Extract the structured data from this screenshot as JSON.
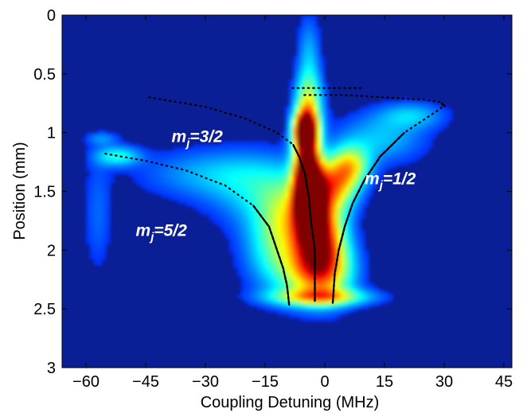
{
  "chart_data": {
    "type": "heatmap",
    "title": "",
    "xlabel": "Coupling Detuning (MHz)",
    "ylabel": "Position (mm)",
    "xlim": [
      -66,
      47
    ],
    "ylim": [
      0,
      3
    ],
    "y_inverted": true,
    "x_ticks": [
      -60,
      -45,
      -30,
      -15,
      0,
      15,
      30,
      45
    ],
    "x_tick_labels": [
      "−60",
      "−45",
      "−30",
      "−15",
      "0",
      "15",
      "30",
      "45"
    ],
    "y_ticks": [
      0,
      0.5,
      1,
      1.5,
      2,
      2.5,
      3
    ],
    "y_tick_labels": [
      "0",
      "0.5",
      "1",
      "1.5",
      "2",
      "2.5",
      "3"
    ],
    "colormap": "jet",
    "colors": {
      "background": "#0a1e96",
      "axis": "#000000",
      "annotation": "#ffffff",
      "curve": "#000000"
    },
    "intensity_blobs": [
      {
        "x": -4.5,
        "y": 1.25,
        "sx": 2.2,
        "sy": 0.28,
        "a": 1.0
      },
      {
        "x": -3.5,
        "y": 1.55,
        "sx": 2.6,
        "sy": 0.18,
        "a": 0.85
      },
      {
        "x": -5.0,
        "y": 0.98,
        "sx": 2.0,
        "sy": 0.1,
        "a": 0.8
      },
      {
        "x": -2.5,
        "y": 1.85,
        "sx": 3.5,
        "sy": 0.2,
        "a": 0.62
      },
      {
        "x": -2.0,
        "y": 2.2,
        "sx": 6.0,
        "sy": 0.18,
        "a": 0.55
      },
      {
        "x": 2.5,
        "y": 1.45,
        "sx": 4.0,
        "sy": 0.15,
        "a": 0.55
      },
      {
        "x": 6.5,
        "y": 1.28,
        "sx": 3.5,
        "sy": 0.12,
        "a": 0.45
      },
      {
        "x": 1.0,
        "y": 1.95,
        "sx": 4.0,
        "sy": 0.25,
        "a": 0.4
      },
      {
        "x": -1.0,
        "y": 2.4,
        "sx": 9.0,
        "sy": 0.05,
        "a": 0.45
      },
      {
        "x": -4.0,
        "y": 0.75,
        "sx": 2.5,
        "sy": 0.18,
        "a": 0.35
      },
      {
        "x": -4.0,
        "y": 0.35,
        "sx": 2.0,
        "sy": 0.25,
        "a": 0.2
      },
      {
        "x": -9.0,
        "y": 1.72,
        "sx": 5.0,
        "sy": 0.22,
        "a": 0.3
      },
      {
        "x": -16.0,
        "y": 1.5,
        "sx": 9.0,
        "sy": 0.22,
        "a": 0.22
      },
      {
        "x": -30.0,
        "y": 1.35,
        "sx": 12.0,
        "sy": 0.15,
        "a": 0.18
      },
      {
        "x": -52.0,
        "y": 1.2,
        "sx": 4.0,
        "sy": 0.06,
        "a": 0.3
      },
      {
        "x": 14.0,
        "y": 1.05,
        "sx": 8.0,
        "sy": 0.15,
        "a": 0.22
      },
      {
        "x": 22.0,
        "y": 0.85,
        "sx": 6.0,
        "sy": 0.08,
        "a": 0.2
      },
      {
        "x": -56.0,
        "y": 1.05,
        "sx": 3.0,
        "sy": 0.04,
        "a": 0.15
      },
      {
        "x": -57.0,
        "y": 1.7,
        "sx": 2.5,
        "sy": 0.35,
        "a": 0.12
      },
      {
        "x": -12.0,
        "y": 2.0,
        "sx": 6.0,
        "sy": 0.25,
        "a": 0.28
      }
    ],
    "curves": [
      {
        "name": "m_j=3/2",
        "style": "dotted",
        "x": [
          -44.0,
          -30.0,
          -20.0,
          -12.0,
          -8.0,
          -6.5,
          -5.0,
          -4.0,
          -3.5,
          -2.5,
          -2.5
        ],
        "y": [
          0.7,
          0.78,
          0.88,
          1.0,
          1.1,
          1.2,
          1.35,
          1.55,
          1.75,
          2.0,
          2.45
        ]
      },
      {
        "name": "m_j=1/2",
        "style": "dotted",
        "x": [
          -5.0,
          5.0,
          15.0,
          25.0,
          29.0,
          30.0,
          28.0,
          20.0,
          14.0,
          10.0,
          7.0,
          5.0,
          3.5,
          2.5,
          2.0
        ],
        "y": [
          0.68,
          0.68,
          0.7,
          0.72,
          0.74,
          0.77,
          0.82,
          1.0,
          1.2,
          1.4,
          1.6,
          1.8,
          2.0,
          2.2,
          2.45
        ]
      },
      {
        "name": "m_j=5/2",
        "style": "dotted",
        "x": [
          -55.0,
          -45.0,
          -35.0,
          -25.0,
          -18.0,
          -14.0,
          -12.0,
          -10.5,
          -9.5,
          -9.0
        ],
        "y": [
          1.18,
          1.24,
          1.32,
          1.45,
          1.62,
          1.8,
          2.0,
          2.15,
          2.3,
          2.45
        ]
      },
      {
        "name": "top",
        "style": "dotted",
        "x": [
          -8.0,
          -4.0,
          0.0,
          5.0,
          10.0
        ],
        "y": [
          0.62,
          0.62,
          0.62,
          0.62,
          0.62
        ]
      }
    ],
    "annotations": [
      {
        "main": "m",
        "sub": "j",
        "rest": "=3/2",
        "x": -38.5,
        "y": 1.08
      },
      {
        "main": "m",
        "sub": "j",
        "rest": "=1/2",
        "x": 10.0,
        "y": 1.44
      },
      {
        "main": "m",
        "sub": "j",
        "rest": "=5/2",
        "x": -47.5,
        "y": 1.88
      }
    ]
  }
}
